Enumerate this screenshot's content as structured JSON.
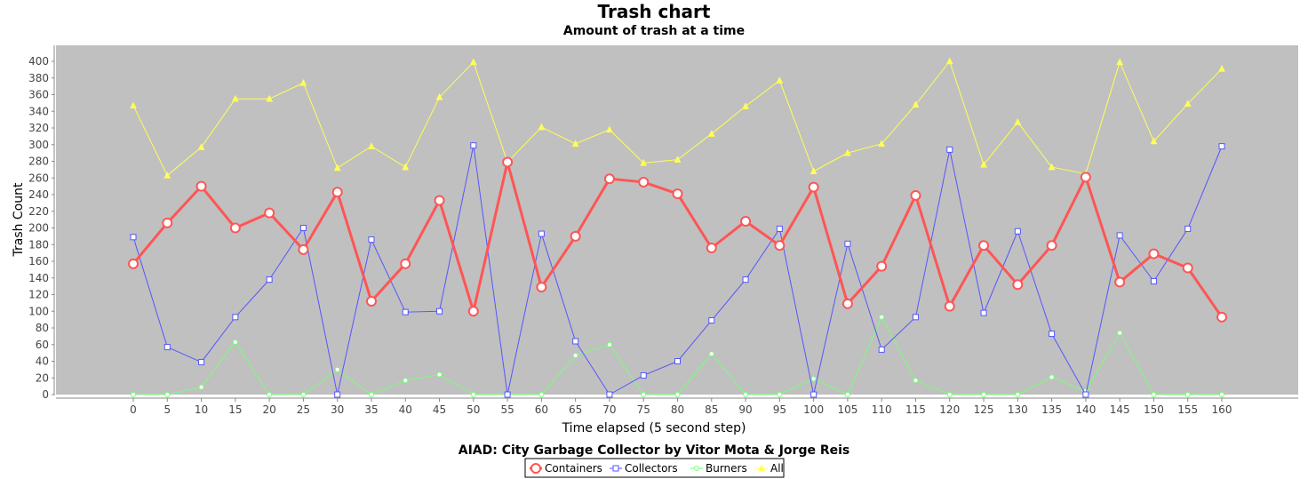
{
  "chart_data": {
    "type": "line",
    "title": "Trash chart",
    "subtitle": "Amount of trash at a time",
    "xlabel": "Time elapsed (5 second step)",
    "ylabel": "Trash Count",
    "caption": "AIAD: City Garbage Collector by Vitor Mota & Jorge Reis",
    "ylim": [
      0,
      410
    ],
    "yticks": [
      0,
      20,
      40,
      60,
      80,
      100,
      120,
      140,
      160,
      180,
      200,
      220,
      240,
      260,
      280,
      300,
      320,
      340,
      360,
      380,
      400
    ],
    "x": [
      0,
      5,
      10,
      15,
      20,
      25,
      30,
      35,
      40,
      45,
      50,
      55,
      60,
      65,
      70,
      75,
      80,
      85,
      90,
      95,
      100,
      105,
      110,
      115,
      120,
      125,
      130,
      135,
      140,
      145,
      150,
      155,
      160
    ],
    "plot_background": "#c0c0c0",
    "legend_position": "bottom-center",
    "series": [
      {
        "name": "Containers",
        "color": "#ff5555",
        "marker": "circle",
        "values": [
          157,
          206,
          250,
          200,
          218,
          174,
          243,
          112,
          157,
          233,
          100,
          279,
          129,
          190,
          259,
          255,
          241,
          176,
          208,
          179,
          249,
          109,
          154,
          239,
          106,
          179,
          132,
          179,
          261,
          135,
          169,
          152,
          93
        ]
      },
      {
        "name": "Collectors",
        "color": "#5555ff",
        "marker": "square",
        "values": [
          189,
          57,
          39,
          93,
          138,
          200,
          0,
          186,
          99,
          100,
          299,
          0,
          193,
          64,
          0,
          23,
          40,
          89,
          138,
          199,
          0,
          181,
          54,
          93,
          294,
          98,
          196,
          73,
          0,
          191,
          136,
          199,
          298
        ]
      },
      {
        "name": "Burners",
        "color": "#77ff77",
        "marker": "circle",
        "values": [
          0,
          0,
          9,
          63,
          0,
          0,
          30,
          0,
          17,
          24,
          0,
          0,
          0,
          47,
          60,
          0,
          0,
          49,
          0,
          0,
          19,
          0,
          93,
          17,
          0,
          0,
          0,
          21,
          4,
          74,
          0,
          0,
          0
        ]
      },
      {
        "name": "All",
        "color": "#ffff55",
        "marker": "triangle",
        "values": [
          347,
          263,
          297,
          355,
          355,
          374,
          272,
          298,
          273,
          357,
          399,
          279,
          321,
          301,
          318,
          278,
          282,
          313,
          346,
          377,
          268,
          290,
          301,
          348,
          400,
          276,
          327,
          273,
          265,
          399,
          304,
          349,
          391
        ]
      }
    ]
  }
}
